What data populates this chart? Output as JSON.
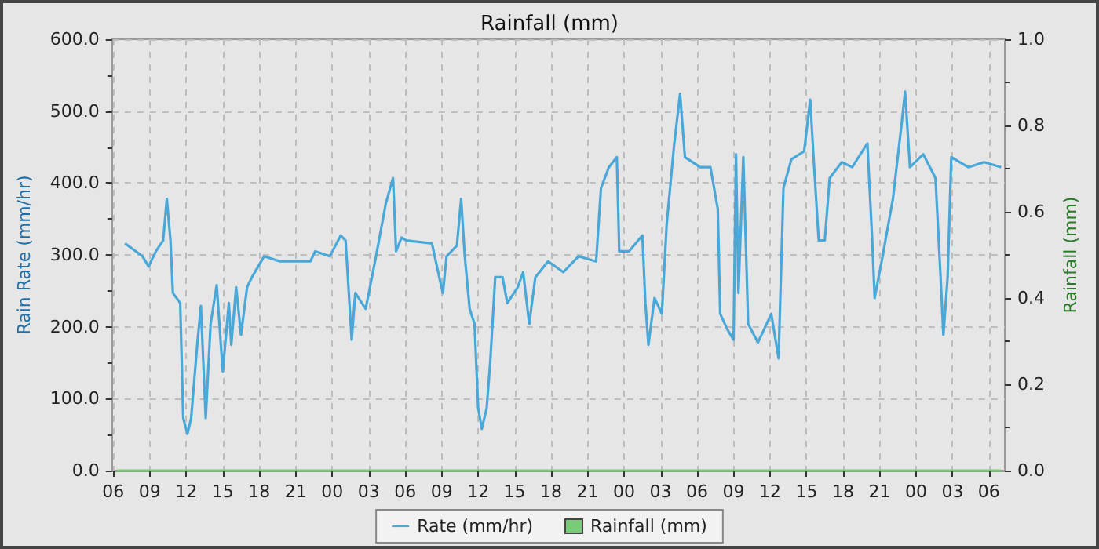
{
  "chart_data": {
    "type": "line",
    "title": "Rainfall (mm)",
    "ylabel": "Rain Rate (mm/hr)",
    "y2label": "Rainfall (mm)",
    "xlim": [
      5.9,
      79.3
    ],
    "xticks": [
      {
        "value": 6,
        "label": "06"
      },
      {
        "value": 9,
        "label": "09"
      },
      {
        "value": 12,
        "label": "12"
      },
      {
        "value": 15,
        "label": "15"
      },
      {
        "value": 18,
        "label": "18"
      },
      {
        "value": 21,
        "label": "21"
      },
      {
        "value": 24,
        "label": "00"
      },
      {
        "value": 27,
        "label": "03"
      },
      {
        "value": 30,
        "label": "06"
      },
      {
        "value": 33,
        "label": "09"
      },
      {
        "value": 36,
        "label": "12"
      },
      {
        "value": 39,
        "label": "15"
      },
      {
        "value": 42,
        "label": "18"
      },
      {
        "value": 45,
        "label": "21"
      },
      {
        "value": 48,
        "label": "00"
      },
      {
        "value": 51,
        "label": "03"
      },
      {
        "value": 54,
        "label": "06"
      },
      {
        "value": 57,
        "label": "09"
      },
      {
        "value": 60,
        "label": "12"
      },
      {
        "value": 63,
        "label": "15"
      },
      {
        "value": 66,
        "label": "18"
      },
      {
        "value": 69,
        "label": "21"
      },
      {
        "value": 72,
        "label": "00"
      },
      {
        "value": 75,
        "label": "03"
      },
      {
        "value": 78,
        "label": "06"
      }
    ],
    "ylim": [
      0,
      600
    ],
    "yticks": [
      {
        "value": 0,
        "label": "0.0"
      },
      {
        "value": 100,
        "label": "100.0"
      },
      {
        "value": 200,
        "label": "200.0"
      },
      {
        "value": 300,
        "label": "300.0"
      },
      {
        "value": 400,
        "label": "400.0"
      },
      {
        "value": 500,
        "label": "500.0"
      },
      {
        "value": 600,
        "label": "600.0"
      }
    ],
    "y2lim": [
      0,
      1
    ],
    "y2ticks": [
      {
        "value": 0,
        "label": "0.0"
      },
      {
        "value": 0.2,
        "label": "0.2"
      },
      {
        "value": 0.4,
        "label": "0.4"
      },
      {
        "value": 0.6,
        "label": "0.6"
      },
      {
        "value": 0.8,
        "label": "0.8"
      },
      {
        "value": 1,
        "label": "1.0"
      }
    ],
    "grid": true,
    "legend": "bottom",
    "marker": "none",
    "line_style": "solid",
    "series": [
      {
        "name": "Rate (mm/hr)",
        "color": "#4aa8d8",
        "x": [
          6.96,
          8.4,
          8.9,
          9.5,
          10.1,
          10.4,
          10.7,
          10.9,
          11.5,
          11.75,
          12.1,
          12.4,
          12.9,
          13.2,
          13.6,
          14.0,
          14.5,
          15.0,
          15.5,
          15.7,
          16.1,
          16.5,
          17.0,
          17.4,
          18.4,
          19.7,
          22.2,
          22.6,
          23.8,
          24.7,
          25.1,
          25.6,
          25.9,
          26.75,
          27.6,
          28.4,
          29.0,
          29.25,
          29.7,
          30.1,
          32.2,
          32.8,
          33.1,
          33.4,
          34.25,
          34.6,
          34.9,
          35.3,
          35.7,
          36.0,
          36.3,
          36.7,
          37.0,
          37.4,
          38.0,
          38.4,
          39.25,
          39.7,
          40.2,
          40.7,
          41.75,
          43.0,
          44.25,
          45.7,
          46.1,
          46.75,
          47.4,
          47.6,
          48.4,
          49.5,
          49.75,
          50.0,
          50.5,
          51.1,
          51.5,
          52.1,
          52.6,
          53.0,
          54.25,
          55.1,
          55.7,
          55.9,
          56.5,
          57.0,
          57.2,
          57.4,
          57.8,
          58.2,
          59.0,
          60.1,
          60.7,
          61.1,
          61.75,
          62.8,
          63.1,
          63.3,
          63.6,
          64.0,
          64.5,
          64.9,
          65.9,
          66.75,
          68.0,
          68.4,
          68.6,
          69.25,
          70.1,
          70.8,
          71.1,
          71.5,
          72.6,
          73.6,
          74.0,
          74.25,
          74.6,
          74.9,
          76.3,
          77.6,
          79.0
        ],
        "values": [
          316,
          298,
          284,
          305,
          320,
          378,
          320,
          247,
          233,
          73,
          51,
          73,
          175,
          229,
          73,
          204,
          258,
          138,
          233,
          175,
          255,
          189,
          255,
          269,
          298,
          291,
          291,
          305,
          298,
          327,
          320,
          182,
          247,
          225,
          298,
          371,
          407,
          305,
          324,
          320,
          316,
          269,
          247,
          298,
          313,
          378,
          298,
          225,
          204,
          87,
          58,
          87,
          153,
          269,
          269,
          233,
          255,
          276,
          204,
          269,
          291,
          276,
          298,
          291,
          393,
          422,
          436,
          305,
          305,
          327,
          233,
          175,
          240,
          218,
          342,
          451,
          524,
          436,
          422,
          422,
          364,
          218,
          196,
          182,
          440,
          247,
          436,
          204,
          178,
          218,
          156,
          393,
          433,
          444,
          487,
          516,
          429,
          320,
          320,
          407,
          429,
          422,
          455,
          320,
          240,
          298,
          378,
          480,
          527,
          422,
          440,
          407,
          276,
          189,
          269,
          436,
          422,
          429,
          422
        ]
      },
      {
        "name": "Rainfall (mm)",
        "color": "#77cc77",
        "type": "line",
        "axis": "y2",
        "x": [
          6.25,
          79.0
        ],
        "values": [
          0,
          0
        ]
      }
    ]
  }
}
